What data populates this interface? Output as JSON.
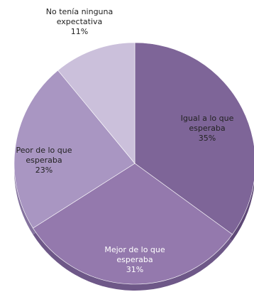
{
  "chart_data": {
    "type": "pie",
    "slices": [
      {
        "label_lines": [
          "Igual a lo que",
          "esperaba"
        ],
        "value": 35,
        "value_text": "35%",
        "color": "#7e6598",
        "edge": "#5e4876"
      },
      {
        "label_lines": [
          "Mejor de lo que",
          "esperaba"
        ],
        "value": 31,
        "value_text": "31%",
        "color": "#9479ad",
        "edge": "#6e5888"
      },
      {
        "label_lines": [
          "Peor de lo que",
          "esperaba"
        ],
        "value": 23,
        "value_text": "23%",
        "color": "#a996c2",
        "edge": "#84729e"
      },
      {
        "label_lines": [
          "No tenía ninguna",
          "expectativa"
        ],
        "value": 11,
        "value_text": "11%",
        "color": "#cbc0db",
        "edge": "#a196b4"
      }
    ],
    "legend": "none",
    "labels": "inside"
  }
}
